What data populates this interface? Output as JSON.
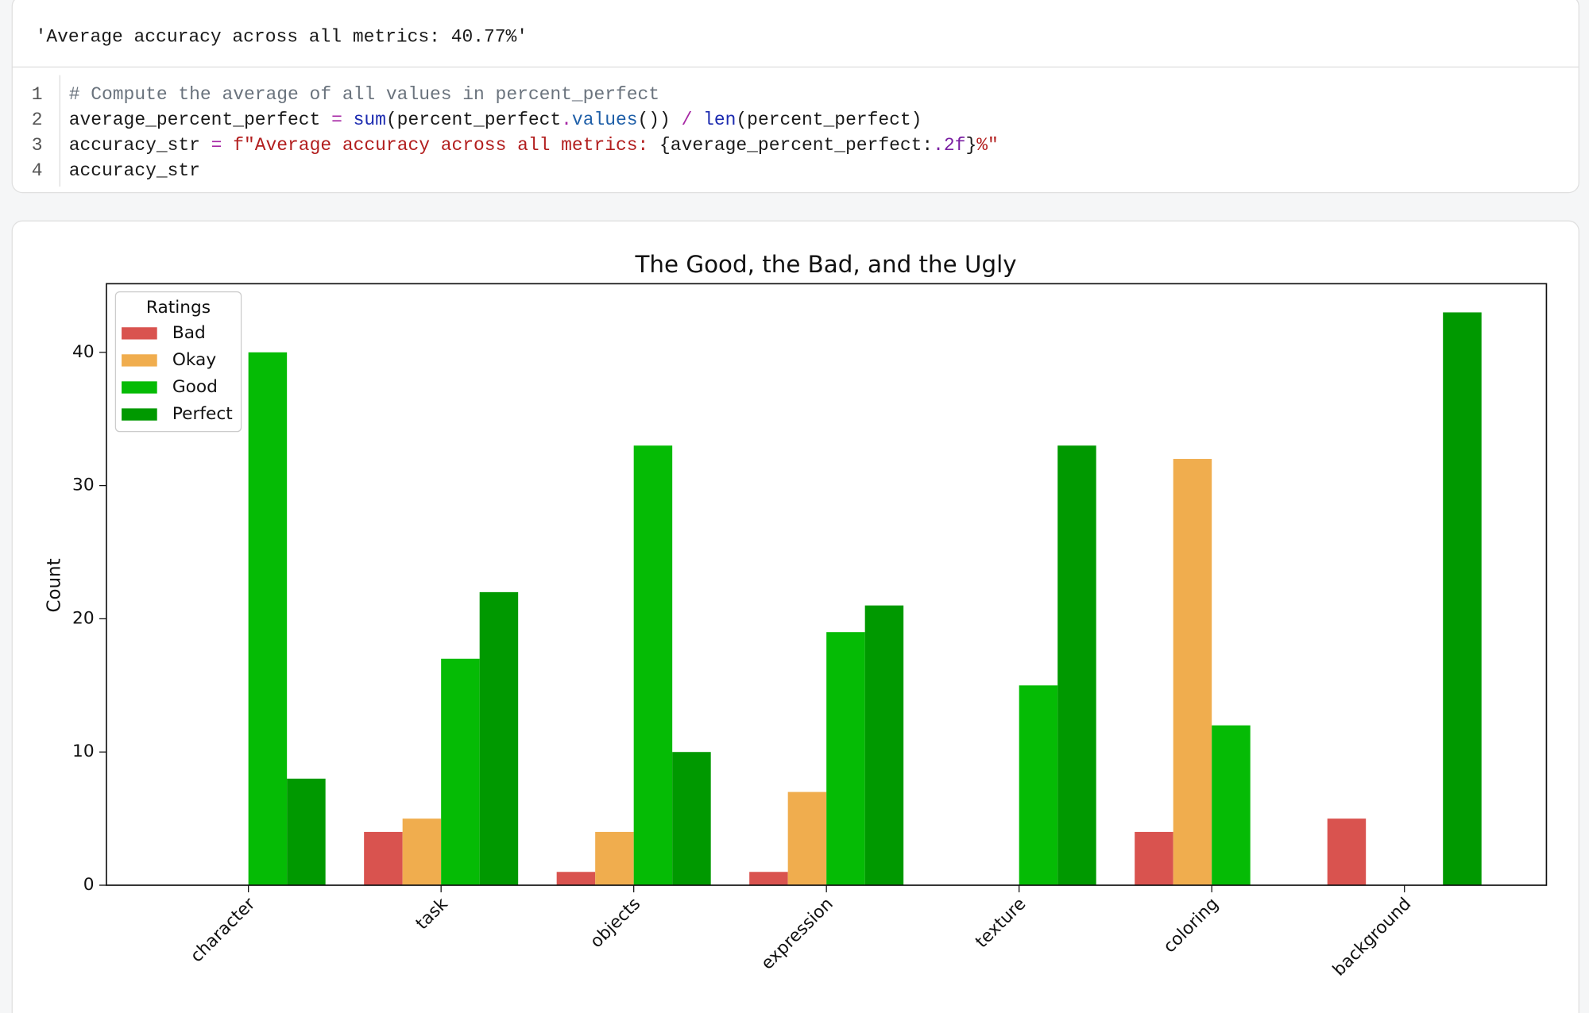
{
  "output": "'Average accuracy across all metrics: 40.77%'",
  "code": {
    "line_numbers": [
      1,
      2,
      3,
      4
    ],
    "lines": [
      [
        "# Compute the average of all values in percent_perfect"
      ],
      [
        "average_percent_perfect ",
        "=",
        " ",
        "sum",
        "(percent_perfect",
        ".",
        "values",
        "()) ",
        "/",
        " ",
        "len",
        "(percent_perfect)"
      ],
      [
        "accuracy_str ",
        "=",
        " ",
        "f\"Average accuracy across all metrics: ",
        "{average_percent_perfect:",
        ".2f",
        "}",
        "%\""
      ],
      [
        "accuracy_str"
      ]
    ]
  },
  "chart_data": {
    "type": "bar",
    "title": "The Good, the Bad, and the Ugly",
    "y_label": "Count",
    "categories": [
      "character",
      "task",
      "objects",
      "expression",
      "texture",
      "coloring",
      "background"
    ],
    "series": [
      {
        "name": "Bad",
        "color": "#d9534f",
        "values": [
          0,
          4,
          1,
          1,
          0,
          4,
          5
        ]
      },
      {
        "name": "Okay",
        "color": "#f0ad4e",
        "values": [
          0,
          5,
          4,
          7,
          0,
          32,
          0
        ]
      },
      {
        "name": "Good",
        "color": "#05bb05",
        "values": [
          40,
          17,
          33,
          19,
          15,
          12,
          0
        ]
      },
      {
        "name": "Perfect",
        "color": "#009900",
        "values": [
          8,
          22,
          10,
          21,
          33,
          0,
          43
        ]
      }
    ],
    "legend_title": "Ratings",
    "legend": "upper left",
    "ylim": [
      0,
      45.15
    ],
    "yticks": [
      0,
      10,
      20,
      30,
      40
    ]
  }
}
